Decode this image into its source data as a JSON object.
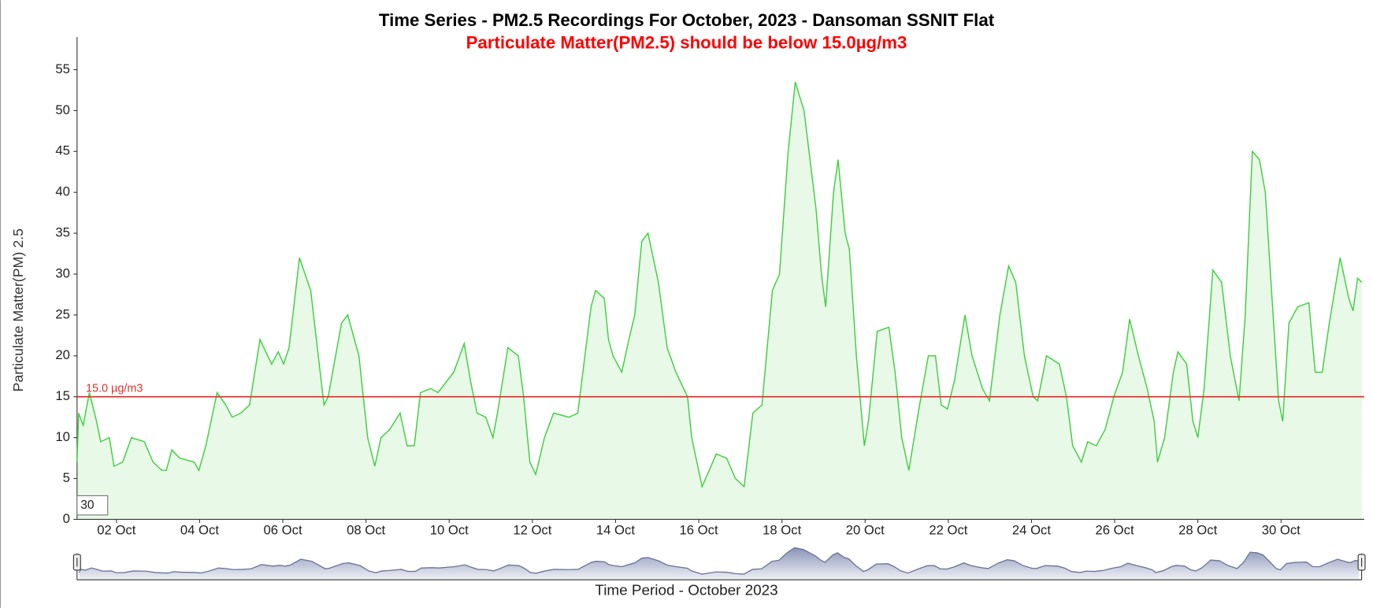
{
  "chart_data": {
    "type": "line",
    "title": "Time Series - PM2.5 Recordings For October, 2023 - Dansoman SSNIT Flat",
    "subtitle": "Particulate Matter(PM2.5) should be below 15.0µg/m3",
    "x_label": "Time Period - October 2023",
    "y_label": "Particulate Matter(PM) 2.5",
    "color": "#3fcf3f",
    "grid": false,
    "roll_period": 30,
    "threshold": {
      "value": 15,
      "label": "15.0 µg/m3",
      "color": "#e83030"
    },
    "xlim": [
      1,
      32
    ],
    "ylim": [
      0,
      59
    ],
    "xticks": [
      {
        "value": 2,
        "label": "02 Oct"
      },
      {
        "value": 4,
        "label": "04 Oct"
      },
      {
        "value": 6,
        "label": "06 Oct"
      },
      {
        "value": 8,
        "label": "08 Oct"
      },
      {
        "value": 10,
        "label": "10 Oct"
      },
      {
        "value": 12,
        "label": "12 Oct"
      },
      {
        "value": 14,
        "label": "14 Oct"
      },
      {
        "value": 16,
        "label": "16 Oct"
      },
      {
        "value": 18,
        "label": "18 Oct"
      },
      {
        "value": 20,
        "label": "20 Oct"
      },
      {
        "value": 22,
        "label": "22 Oct"
      },
      {
        "value": 24,
        "label": "24 Oct"
      },
      {
        "value": 26,
        "label": "26 Oct"
      },
      {
        "value": 28,
        "label": "28 Oct"
      },
      {
        "value": 30,
        "label": "30 Oct"
      }
    ],
    "yticks": [
      0,
      5,
      10,
      15,
      20,
      25,
      30,
      35,
      40,
      45,
      50,
      55
    ],
    "x": [
      1.05,
      1.09,
      1.2,
      1.35,
      1.52,
      1.62,
      1.83,
      1.94,
      2.15,
      2.36,
      2.67,
      2.88,
      3.09,
      3.2,
      3.33,
      3.52,
      3.87,
      3.98,
      4.15,
      4.42,
      4.63,
      4.78,
      4.99,
      5.2,
      5.45,
      5.73,
      5.89,
      6.02,
      6.15,
      6.4,
      6.67,
      6.99,
      7.09,
      7.41,
      7.56,
      7.83,
      8.04,
      8.21,
      8.36,
      8.57,
      8.82,
      8.99,
      9.16,
      9.31,
      9.56,
      9.73,
      10.11,
      10.36,
      10.51,
      10.67,
      10.88,
      11.05,
      11.16,
      11.41,
      11.66,
      11.79,
      11.94,
      12.08,
      12.29,
      12.51,
      12.88,
      13.09,
      13.41,
      13.52,
      13.73,
      13.83,
      13.94,
      14.15,
      14.32,
      14.46,
      14.63,
      14.78,
      15.03,
      15.24,
      15.45,
      15.73,
      15.83,
      16.08,
      16.25,
      16.42,
      16.67,
      16.88,
      17.09,
      17.3,
      17.52,
      17.77,
      17.94,
      18.15,
      18.32,
      18.53,
      18.82,
      18.95,
      19.05,
      19.24,
      19.35,
      19.52,
      19.62,
      19.79,
      19.98,
      20.08,
      20.29,
      20.57,
      20.72,
      20.88,
      21.05,
      21.31,
      21.52,
      21.69,
      21.83,
      21.98,
      22.15,
      22.4,
      22.57,
      22.82,
      22.99,
      23.24,
      23.45,
      23.62,
      23.83,
      24.04,
      24.15,
      24.36,
      24.67,
      24.84,
      24.99,
      25.2,
      25.35,
      25.56,
      25.77,
      25.98,
      26.19,
      26.36,
      26.57,
      26.78,
      26.95,
      27.03,
      27.2,
      27.41,
      27.52,
      27.73,
      27.88,
      28.0,
      28.15,
      28.36,
      28.57,
      28.78,
      28.99,
      29.14,
      29.31,
      29.48,
      29.62,
      29.77,
      29.94,
      30.04,
      30.19,
      30.4,
      30.67,
      30.82,
      30.99,
      31.16,
      31.42,
      31.63,
      31.73,
      31.84,
      31.94
    ],
    "values": [
      7,
      13,
      11.5,
      15.5,
      12,
      9.5,
      10,
      6.5,
      7,
      10,
      9.5,
      7,
      6,
      6,
      8.5,
      7.5,
      7,
      6,
      9,
      15.5,
      14,
      12.5,
      13,
      14,
      22,
      19,
      20.5,
      19,
      21,
      32,
      28,
      14,
      15,
      24,
      25,
      20,
      10,
      6.5,
      10,
      11,
      13,
      9,
      9,
      15.5,
      16,
      15.5,
      18,
      21.5,
      17,
      13,
      12.5,
      10,
      13,
      21,
      20,
      15,
      7,
      5.5,
      10,
      13,
      12.5,
      13,
      26,
      28,
      27,
      22,
      20,
      18,
      22,
      25,
      34,
      35,
      29,
      21,
      18,
      15,
      10,
      4,
      6,
      8,
      7.5,
      5,
      4,
      13,
      14,
      28,
      30,
      45,
      53.5,
      50,
      38,
      30,
      26,
      40,
      44,
      35,
      33,
      20,
      9,
      12,
      23,
      23.5,
      18,
      10,
      6,
      14,
      20,
      20,
      14,
      13.5,
      17,
      25,
      20,
      16,
      14.5,
      25,
      31,
      29,
      20,
      15,
      14.5,
      20,
      19,
      15,
      9,
      7,
      9.5,
      9,
      11,
      15,
      18,
      24.5,
      20,
      16,
      12,
      7,
      10,
      18,
      20.5,
      19,
      12,
      10,
      16,
      30.5,
      29,
      20,
      14.5,
      25,
      45,
      44,
      40,
      28,
      14.5,
      12,
      24,
      26,
      26.5,
      18,
      18,
      24,
      32,
      27,
      25.5,
      29.5,
      29
    ]
  }
}
